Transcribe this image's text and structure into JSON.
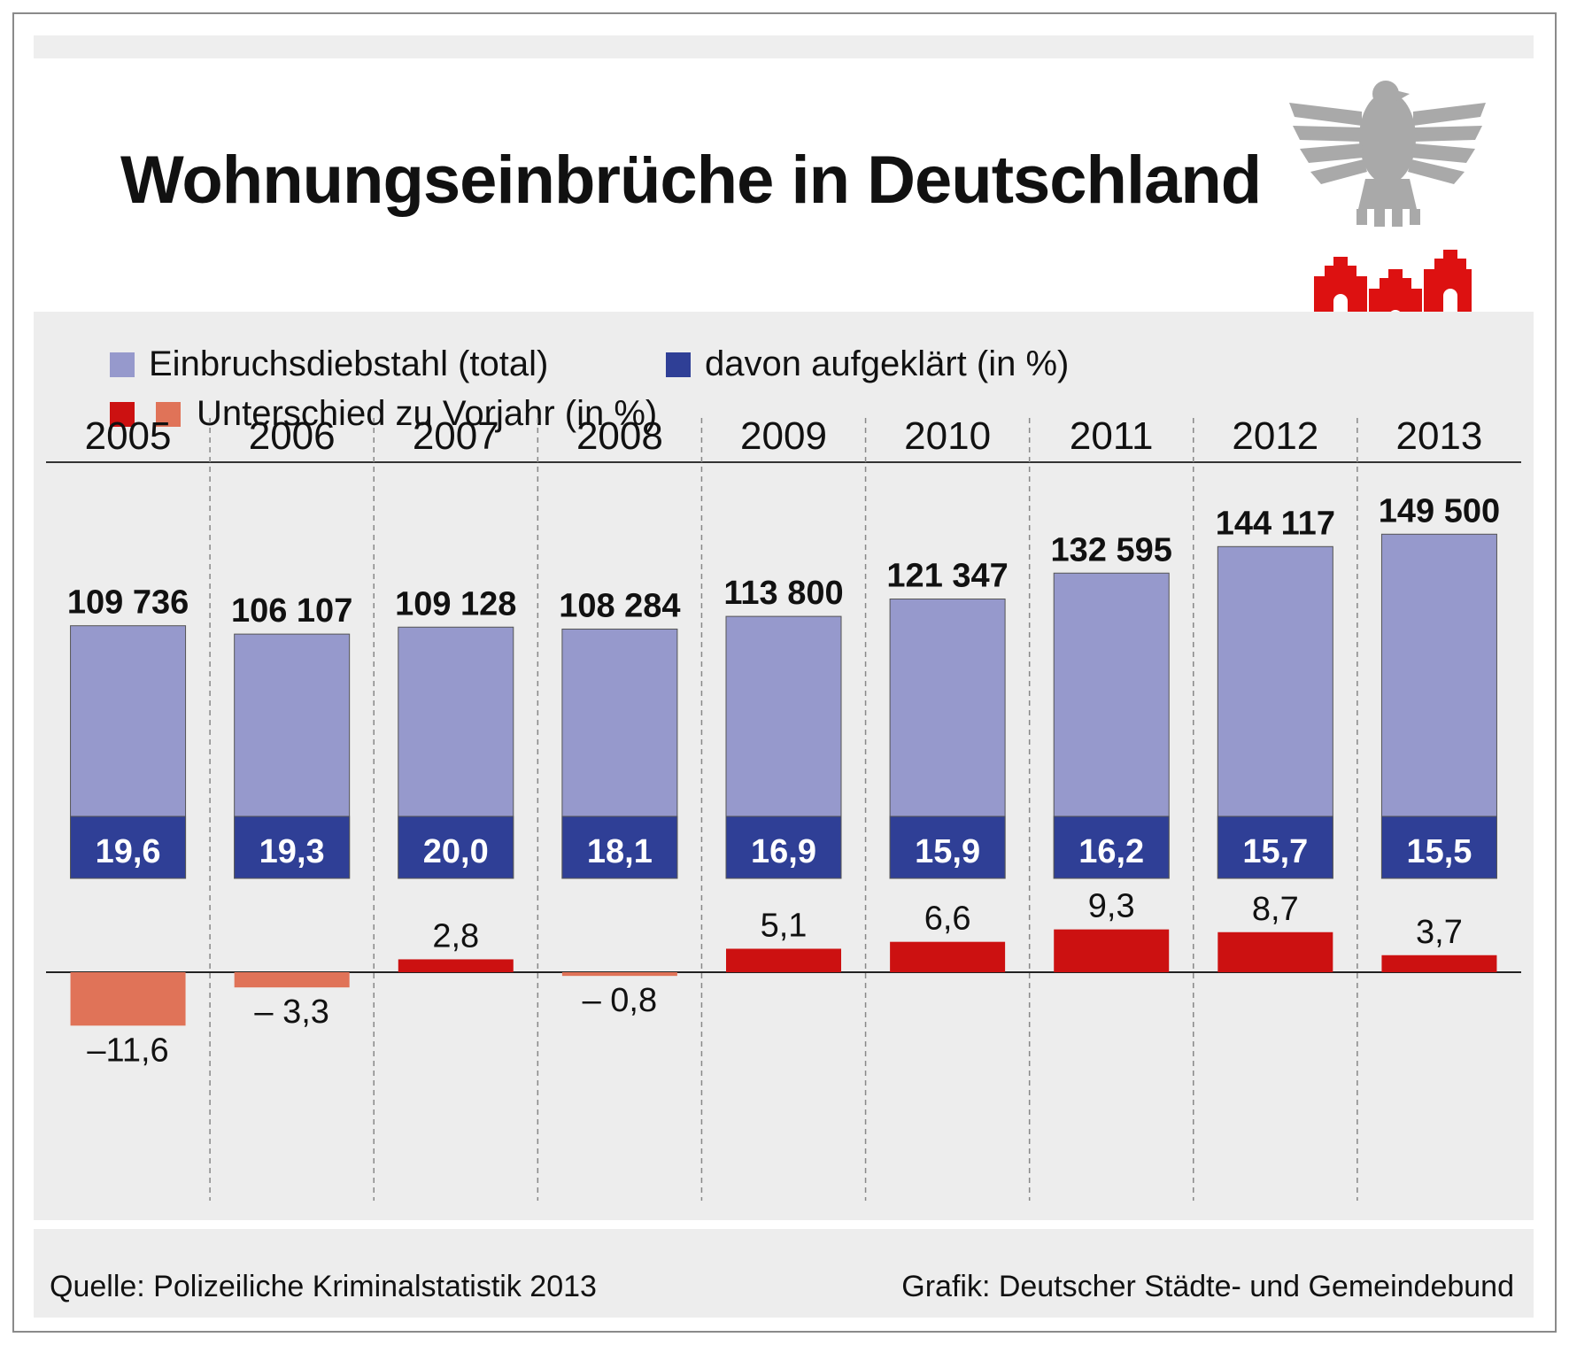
{
  "title": "Wohnungseinbrüche in Deutschland",
  "source": "Quelle: Polizeiliche Kriminalstatistik 2013",
  "credit": "Grafik: Deutscher Städte- und Gemeindebund",
  "colors": {
    "total": "#9699cc",
    "cleared": "#2f3f96",
    "increase": "#cc1111",
    "decrease": "#e07358",
    "emblem": "#a9a9a9",
    "houses": "#dd1111"
  },
  "icons": {
    "emblem": "eagle-icon",
    "logo": "houses-icon"
  },
  "chart_data": {
    "type": "bar",
    "categories": [
      "2005",
      "2006",
      "2007",
      "2008",
      "2009",
      "2010",
      "2011",
      "2012",
      "2013"
    ],
    "series": [
      {
        "name": "Einbruchsdiebstahl (total)",
        "values": [
          109736,
          106107,
          109128,
          108284,
          113800,
          121347,
          132595,
          144117,
          149500
        ],
        "labels": [
          "109 736",
          "106 107",
          "109 128",
          "108 284",
          "113 800",
          "121 347",
          "132 595",
          "144 117",
          "149 500"
        ]
      },
      {
        "name": "davon aufgeklärt (in %)",
        "values": [
          19.6,
          19.3,
          20.0,
          18.1,
          16.9,
          15.9,
          16.2,
          15.7,
          15.5
        ],
        "labels": [
          "19,6",
          "19,3",
          "20,0",
          "18,1",
          "16,9",
          "15,9",
          "16,2",
          "15,7",
          "15,5"
        ]
      },
      {
        "name": "Unterschied zu Vorjahr (in %)",
        "values": [
          -11.6,
          -3.3,
          2.8,
          -0.8,
          5.1,
          6.6,
          9.3,
          8.7,
          3.7
        ],
        "labels": [
          "–11,6",
          "– 3,3",
          "2,8",
          "– 0,8",
          "5,1",
          "6,6",
          "9,3",
          "8,7",
          "3,7"
        ]
      }
    ],
    "legend_position": "top-left",
    "grid": false
  }
}
